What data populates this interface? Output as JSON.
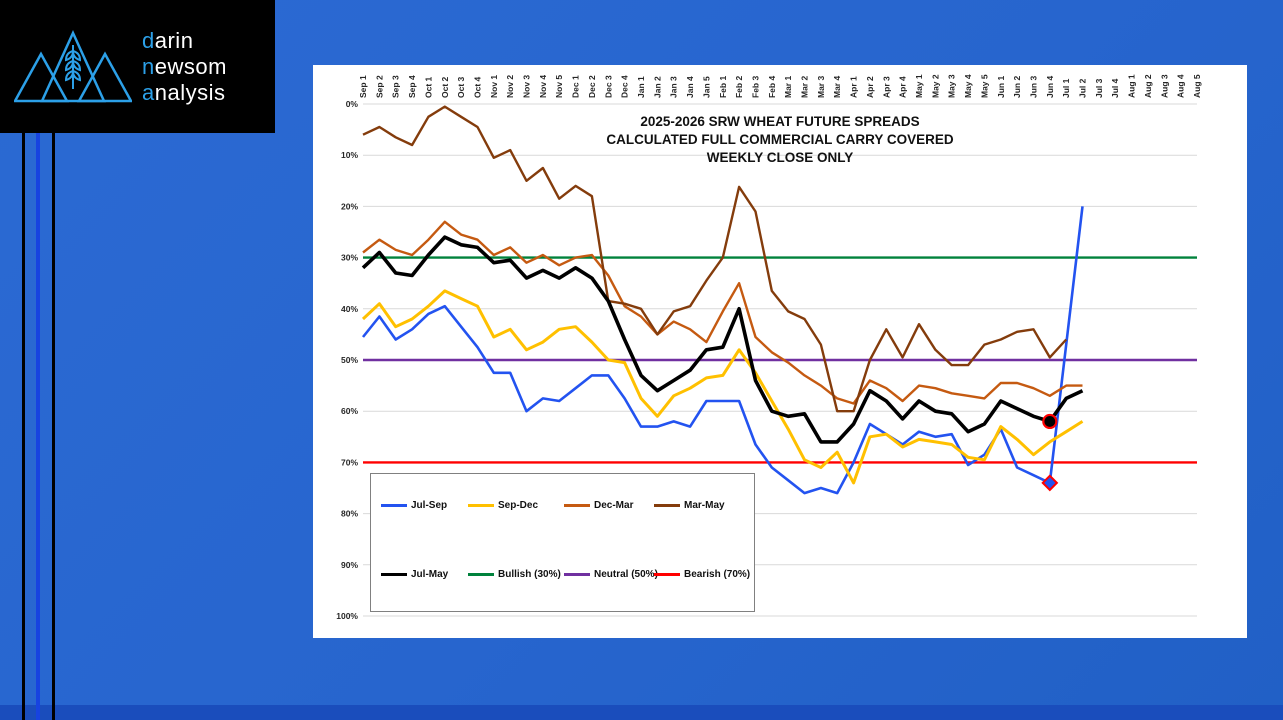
{
  "logo": {
    "line1_accent": "d",
    "line1_rest": "arin",
    "line2_accent": "n",
    "line2_rest": "ewsom",
    "line3_accent": "a",
    "line3_rest": "nalysis"
  },
  "colors": {
    "background": "#2765CE",
    "panel": "#FFFFFF",
    "grid": "#D9D9D9",
    "tick_text": "#262626",
    "stripe_black": "#000000",
    "stripe_blue": "#1743E0",
    "logo_accent": "#2CA0E8"
  },
  "chart_data": {
    "type": "line",
    "title_lines": [
      "2025-2026 SRW WHEAT FUTURE SPREADS",
      "CALCULATED FULL COMMERCIAL CARRY COVERED",
      "WEEKLY CLOSE ONLY"
    ],
    "x_labels": [
      "Sep 1",
      "Sep 2",
      "Sep 3",
      "Sep 4",
      "Oct 1",
      "Oct 2",
      "Oct 3",
      "Oct 4",
      "Nov 1",
      "Nov 2",
      "Nov 3",
      "Nov 4",
      "Nov 5",
      "Dec 1",
      "Dec 2",
      "Dec 3",
      "Dec 4",
      "Jan 1",
      "Jan 2",
      "Jan 3",
      "Jan 4",
      "Jan 5",
      "Feb 1",
      "Feb 2",
      "Feb 3",
      "Feb 4",
      "Mar 1",
      "Mar 2",
      "Mar 3",
      "Mar 4",
      "Apr 1",
      "Apr 2",
      "Apr 3",
      "Apr 4",
      "May 1",
      "May 2",
      "May 3",
      "May 4",
      "May 5",
      "Jun 1",
      "Jun 2",
      "Jun 3",
      "Jun 4",
      "Jul 1",
      "Jul 2",
      "Jul 3",
      "Jul 4",
      "Aug 1",
      "Aug 2",
      "Aug 3",
      "Aug 4",
      "Aug 5"
    ],
    "y_tick_labels": [
      "0%",
      "10%",
      "20%",
      "30%",
      "40%",
      "50%",
      "60%",
      "70%",
      "80%",
      "90%",
      "100%"
    ],
    "y_axis": {
      "min": 0,
      "max": 100,
      "step": 10,
      "inverted": true,
      "unit": "% of full commercial carry"
    },
    "series": [
      {
        "name": "Jul-Sep",
        "color": "#2353F0",
        "width": 2.6,
        "values": [
          45.5,
          41.5,
          46,
          44,
          41,
          39.5,
          43.5,
          47.5,
          52.5,
          52.5,
          60,
          57.5,
          58,
          55.5,
          53,
          53,
          57.5,
          63,
          63,
          62,
          63,
          58,
          58,
          58,
          66.5,
          71,
          73.5,
          76,
          75,
          76,
          70,
          62.5,
          64.5,
          66.5,
          64,
          65,
          64.5,
          70.5,
          68.5,
          63.5,
          71,
          72.5,
          74,
          47,
          20
        ]
      },
      {
        "name": "Sep-Dec",
        "color": "#FFC000",
        "width": 3,
        "values": [
          42,
          39,
          43.5,
          42,
          39.5,
          36.5,
          38,
          39.5,
          45.5,
          44,
          48,
          46.5,
          44,
          43.5,
          46.5,
          50,
          50.5,
          57.5,
          61,
          57,
          55.5,
          53.5,
          53,
          48,
          52.5,
          58,
          63.5,
          69.5,
          71,
          68,
          74,
          65,
          64.5,
          67,
          65.5,
          66,
          66.5,
          69,
          69.5,
          63,
          65.5,
          68.5,
          66,
          64,
          62
        ]
      },
      {
        "name": "Dec-Mar",
        "color": "#C55A11",
        "width": 2.4,
        "values": [
          29,
          26.5,
          28.5,
          29.5,
          26.5,
          23,
          25.5,
          26.5,
          29.5,
          28,
          31,
          29.5,
          31.5,
          30,
          29.5,
          33.5,
          39.5,
          41.5,
          45,
          42.5,
          44,
          46.5,
          40.5,
          35,
          45.5,
          48.5,
          50.5,
          53,
          55,
          57.5,
          58.5,
          54,
          55.5,
          58,
          55,
          55.5,
          56.5,
          57,
          57.5,
          54.5,
          54.5,
          55.5,
          57,
          55,
          55
        ]
      },
      {
        "name": "Mar-May",
        "color": "#843C0C",
        "width": 2.4,
        "values": [
          6,
          4.5,
          6.5,
          8,
          2.5,
          0.5,
          2.5,
          4.5,
          10.5,
          9,
          15,
          12.5,
          18.5,
          16,
          18,
          38.5,
          39,
          40,
          45,
          40.5,
          39.5,
          34.5,
          30,
          16.2,
          21,
          36.5,
          40.5,
          42,
          47,
          60,
          60,
          50,
          44,
          49.5,
          43,
          48,
          51,
          51,
          47,
          46,
          44.5,
          44,
          49.5,
          46
        ]
      },
      {
        "name": "Jul-May",
        "color": "#000000",
        "width": 3.6,
        "values": [
          32,
          29,
          33,
          33.5,
          29.5,
          26,
          27.5,
          28,
          31,
          30.5,
          34,
          32.5,
          34,
          32,
          34,
          38.5,
          46,
          53,
          56,
          54,
          52,
          48,
          47.5,
          40,
          54,
          60,
          61,
          60.5,
          66,
          66,
          62.5,
          56,
          58,
          61.5,
          58,
          60,
          60.5,
          64,
          62.5,
          58,
          59.5,
          61,
          62,
          57.5,
          56
        ]
      }
    ],
    "reference_lines": [
      {
        "name": "Bullish (30%)",
        "value": 30,
        "color": "#00823C",
        "width": 2.4
      },
      {
        "name": "Neutral (50%)",
        "value": 50,
        "color": "#7030A0",
        "width": 2.4
      },
      {
        "name": "Bearish (70%)",
        "value": 70,
        "color": "#FF0000",
        "width": 2.4
      }
    ],
    "markers": [
      {
        "series": "Jul-May",
        "x_label": "Jun 4",
        "value": 62,
        "shape": "circle",
        "fill": "#000000",
        "stroke": "#FF0000"
      },
      {
        "series": "Jul-Sep",
        "x_label": "Jun 4",
        "value": 74,
        "shape": "diamond",
        "fill": "#2353F0",
        "stroke": "#FF0000"
      }
    ],
    "legend": {
      "rows": [
        [
          "Jul-Sep",
          "Sep-Dec",
          "Dec-Mar",
          "Mar-May"
        ],
        [
          "Jul-May",
          "Bullish (30%)",
          "Neutral (50%)",
          "Bearish (70%)"
        ]
      ]
    }
  }
}
